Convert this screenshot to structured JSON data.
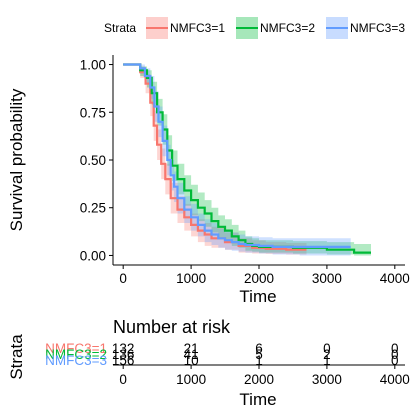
{
  "chart_data": [
    {
      "type": "line",
      "subtype": "kaplan-meier survival curves with confidence bands",
      "xlabel": "Time",
      "ylabel": "Survival probability",
      "xlim": [
        -150,
        4150
      ],
      "ylim": [
        -0.05,
        1.05
      ],
      "xticks": [
        0,
        1000,
        2000,
        3000,
        4000
      ],
      "yticks": [
        0.0,
        0.25,
        0.5,
        0.75,
        1.0
      ],
      "ytick_labels": [
        "0.00",
        "0.25",
        "0.50",
        "0.75",
        "1.00"
      ],
      "grid": false,
      "legend": {
        "title": "Strata",
        "position": "top"
      },
      "series": [
        {
          "name": "NMFC3=1",
          "color": "#F8766D",
          "points": [
            [
              0,
              1.0
            ],
            [
              150,
              1.0
            ],
            [
              250,
              0.96
            ],
            [
              330,
              0.9
            ],
            [
              400,
              0.8
            ],
            [
              450,
              0.68
            ],
            [
              500,
              0.58
            ],
            [
              560,
              0.48
            ],
            [
              620,
              0.4
            ],
            [
              700,
              0.3
            ],
            [
              800,
              0.24
            ],
            [
              900,
              0.2
            ],
            [
              1000,
              0.16
            ],
            [
              1100,
              0.13
            ],
            [
              1200,
              0.11
            ],
            [
              1300,
              0.09
            ],
            [
              1500,
              0.07
            ],
            [
              1700,
              0.05
            ],
            [
              1900,
              0.04
            ],
            [
              2100,
              0.035
            ],
            [
              2400,
              0.03
            ],
            [
              2700,
              0.03
            ]
          ],
          "band": [
            [
              0,
              1.0,
              1.0
            ],
            [
              150,
              1.0,
              1.0
            ],
            [
              250,
              0.93,
              0.99
            ],
            [
              330,
              0.85,
              0.95
            ],
            [
              400,
              0.73,
              0.87
            ],
            [
              450,
              0.6,
              0.76
            ],
            [
              500,
              0.5,
              0.66
            ],
            [
              560,
              0.4,
              0.56
            ],
            [
              620,
              0.32,
              0.48
            ],
            [
              700,
              0.22,
              0.38
            ],
            [
              800,
              0.17,
              0.31
            ],
            [
              900,
              0.13,
              0.27
            ],
            [
              1000,
              0.1,
              0.22
            ],
            [
              1100,
              0.07,
              0.19
            ],
            [
              1200,
              0.05,
              0.17
            ],
            [
              1300,
              0.04,
              0.15
            ],
            [
              1500,
              0.03,
              0.12
            ],
            [
              1700,
              0.015,
              0.09
            ],
            [
              1900,
              0.01,
              0.08
            ],
            [
              2100,
              0.008,
              0.07
            ],
            [
              2400,
              0.005,
              0.065
            ],
            [
              2700,
              0.005,
              0.065
            ]
          ]
        },
        {
          "name": "NMFC3=2",
          "color": "#00BA38",
          "points": [
            [
              0,
              1.0
            ],
            [
              150,
              1.0
            ],
            [
              250,
              0.97
            ],
            [
              350,
              0.93
            ],
            [
              420,
              0.85
            ],
            [
              500,
              0.75
            ],
            [
              580,
              0.66
            ],
            [
              650,
              0.55
            ],
            [
              720,
              0.47
            ],
            [
              800,
              0.4
            ],
            [
              900,
              0.34
            ],
            [
              1000,
              0.29
            ],
            [
              1100,
              0.25
            ],
            [
              1200,
              0.22
            ],
            [
              1300,
              0.18
            ],
            [
              1400,
              0.15
            ],
            [
              1500,
              0.13
            ],
            [
              1600,
              0.1
            ],
            [
              1700,
              0.08
            ],
            [
              1800,
              0.06
            ],
            [
              1900,
              0.05
            ],
            [
              2000,
              0.045
            ],
            [
              2500,
              0.04
            ],
            [
              3000,
              0.03
            ],
            [
              3400,
              0.015
            ],
            [
              3650,
              0.015
            ]
          ],
          "band": [
            [
              0,
              1.0,
              1.0
            ],
            [
              150,
              1.0,
              1.0
            ],
            [
              250,
              0.94,
              0.99
            ],
            [
              350,
              0.88,
              0.97
            ],
            [
              420,
              0.79,
              0.91
            ],
            [
              500,
              0.68,
              0.82
            ],
            [
              580,
              0.58,
              0.74
            ],
            [
              650,
              0.47,
              0.63
            ],
            [
              720,
              0.39,
              0.55
            ],
            [
              800,
              0.32,
              0.48
            ],
            [
              900,
              0.26,
              0.42
            ],
            [
              1000,
              0.21,
              0.37
            ],
            [
              1100,
              0.18,
              0.33
            ],
            [
              1200,
              0.15,
              0.29
            ],
            [
              1300,
              0.12,
              0.25
            ],
            [
              1400,
              0.09,
              0.21
            ],
            [
              1500,
              0.07,
              0.19
            ],
            [
              1600,
              0.05,
              0.16
            ],
            [
              1700,
              0.04,
              0.13
            ],
            [
              1800,
              0.025,
              0.1
            ],
            [
              1900,
              0.02,
              0.09
            ],
            [
              2000,
              0.015,
              0.08
            ],
            [
              2500,
              0.01,
              0.075
            ],
            [
              3000,
              0.005,
              0.07
            ],
            [
              3400,
              0.0,
              0.06
            ],
            [
              3650,
              0.0,
              0.06
            ]
          ]
        },
        {
          "name": "NMFC3=3",
          "color": "#619CFF",
          "points": [
            [
              0,
              1.0
            ],
            [
              150,
              1.0
            ],
            [
              250,
              0.98
            ],
            [
              320,
              0.94
            ],
            [
              400,
              0.88
            ],
            [
              460,
              0.78
            ],
            [
              520,
              0.7
            ],
            [
              580,
              0.6
            ],
            [
              650,
              0.5
            ],
            [
              700,
              0.42
            ],
            [
              750,
              0.36
            ],
            [
              800,
              0.3
            ],
            [
              900,
              0.24
            ],
            [
              1000,
              0.2
            ],
            [
              1100,
              0.16
            ],
            [
              1200,
              0.13
            ],
            [
              1300,
              0.11
            ],
            [
              1400,
              0.09
            ],
            [
              1500,
              0.08
            ],
            [
              1600,
              0.07
            ],
            [
              1700,
              0.06
            ],
            [
              1800,
              0.055
            ],
            [
              2000,
              0.05
            ],
            [
              2200,
              0.045
            ],
            [
              2600,
              0.045
            ],
            [
              3000,
              0.045
            ],
            [
              3350,
              0.045
            ]
          ],
          "band": [
            [
              0,
              1.0,
              1.0
            ],
            [
              150,
              1.0,
              1.0
            ],
            [
              250,
              0.95,
              1.0
            ],
            [
              320,
              0.9,
              0.98
            ],
            [
              400,
              0.82,
              0.94
            ],
            [
              460,
              0.7,
              0.86
            ],
            [
              520,
              0.62,
              0.78
            ],
            [
              580,
              0.52,
              0.68
            ],
            [
              650,
              0.42,
              0.58
            ],
            [
              700,
              0.34,
              0.5
            ],
            [
              750,
              0.28,
              0.44
            ],
            [
              800,
              0.22,
              0.38
            ],
            [
              900,
              0.17,
              0.31
            ],
            [
              1000,
              0.13,
              0.27
            ],
            [
              1100,
              0.1,
              0.22
            ],
            [
              1200,
              0.07,
              0.19
            ],
            [
              1300,
              0.055,
              0.17
            ],
            [
              1400,
              0.04,
              0.14
            ],
            [
              1500,
              0.03,
              0.13
            ],
            [
              1600,
              0.025,
              0.12
            ],
            [
              1700,
              0.02,
              0.11
            ],
            [
              1800,
              0.015,
              0.1
            ],
            [
              2000,
              0.01,
              0.095
            ],
            [
              2200,
              0.005,
              0.09
            ],
            [
              2600,
              0.0,
              0.09
            ],
            [
              3000,
              0.0,
              0.09
            ],
            [
              3350,
              0.0,
              0.09
            ]
          ]
        }
      ]
    },
    {
      "type": "table",
      "title": "Number at risk",
      "ylabel": "Strata",
      "xlabel": "Time",
      "xlim": [
        -150,
        4150
      ],
      "xticks": [
        0,
        1000,
        2000,
        3000,
        4000
      ],
      "rows": [
        {
          "name": "NMFC3=1",
          "color": "#F8766D",
          "values": [
            "132",
            "21",
            "6",
            "0",
            "0"
          ]
        },
        {
          "name": "NMFC3=2",
          "color": "#00BA38",
          "values": [
            "136",
            "41",
            "5",
            "2",
            "0"
          ]
        },
        {
          "name": "NMFC3=3",
          "color": "#619CFF",
          "values": [
            "156",
            "10",
            "1",
            "1",
            "0"
          ]
        }
      ]
    }
  ]
}
